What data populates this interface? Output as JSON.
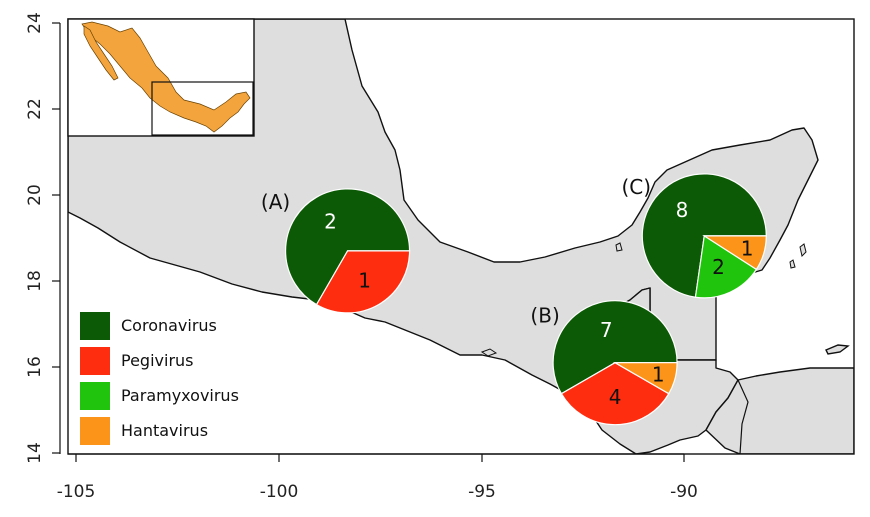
{
  "colors": {
    "land": "#dedede",
    "sea": "#ffffff",
    "inset_land": "#f3a43d",
    "border": "#111111"
  },
  "axes": {
    "x_ticks": [
      "-105",
      "-100",
      "-95",
      "-90"
    ],
    "y_ticks": [
      "14",
      "16",
      "18",
      "20",
      "22",
      "24"
    ]
  },
  "legend": {
    "items": [
      {
        "label": "Coronavirus",
        "color": "#0c5a06"
      },
      {
        "label": "Pegivirus",
        "color": "#ff2d10"
      },
      {
        "label": "Paramyxovirus",
        "color": "#20c40d"
      },
      {
        "label": "Hantavirus",
        "color": "#fb9418"
      }
    ]
  },
  "chart_data": {
    "type": "pie",
    "xlim": [
      -105,
      -85.5
    ],
    "ylim": [
      14,
      24
    ],
    "pies": [
      {
        "label": "(A)",
        "lon": -98.3,
        "lat": 18.7,
        "slices": [
          {
            "name": "Coronavirus",
            "value": 2
          },
          {
            "name": "Pegivirus",
            "value": 1
          }
        ]
      },
      {
        "label": "(B)",
        "lon": -91.7,
        "lat": 16.1,
        "slices": [
          {
            "name": "Coronavirus",
            "value": 7
          },
          {
            "name": "Pegivirus",
            "value": 4
          },
          {
            "name": "Hantavirus",
            "value": 1
          }
        ]
      },
      {
        "label": "(C)",
        "lon": -89.5,
        "lat": 19.05,
        "slices": [
          {
            "name": "Coronavirus",
            "value": 8
          },
          {
            "name": "Paramyxovirus",
            "value": 2
          },
          {
            "name": "Hantavirus",
            "value": 1
          }
        ]
      }
    ]
  }
}
